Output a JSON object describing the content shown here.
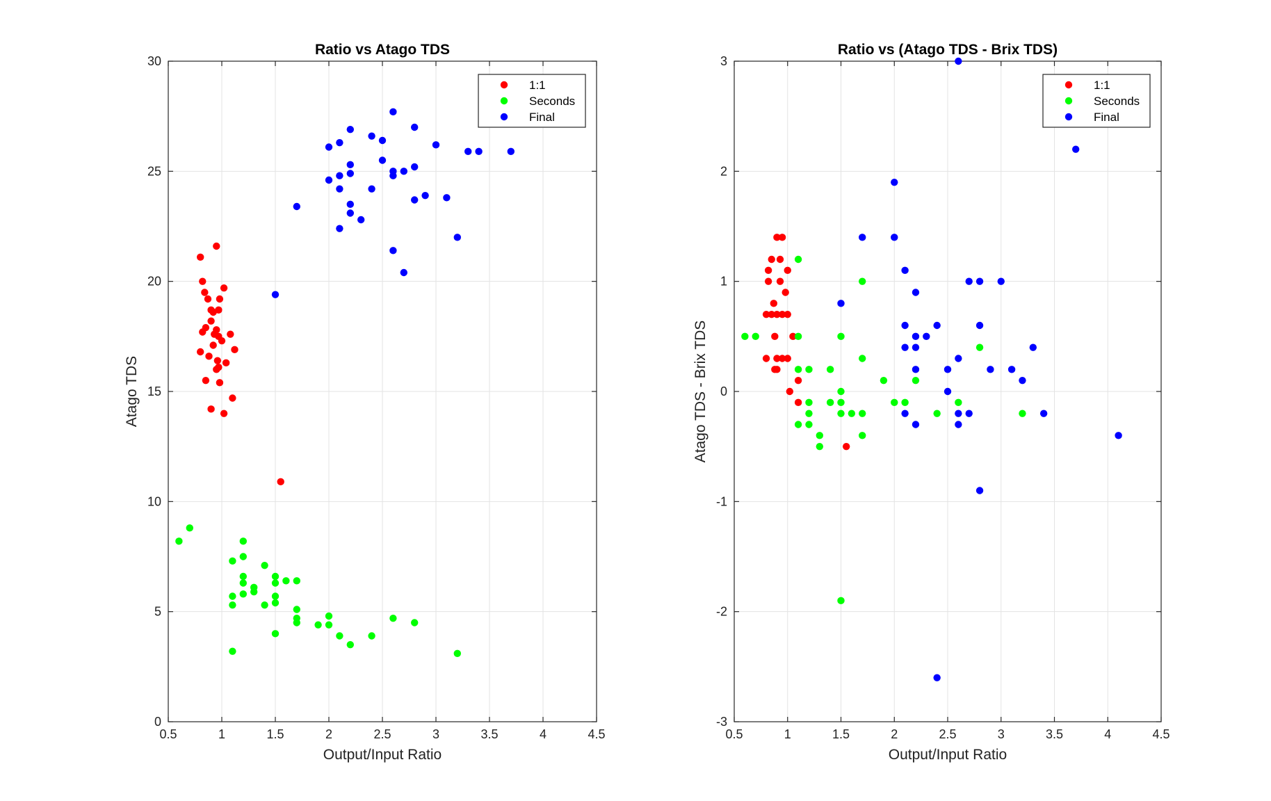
{
  "chart_data": [
    {
      "type": "scatter",
      "title": "Ratio vs Atago TDS",
      "xlabel": "Output/Input Ratio",
      "ylabel": "Atago TDS",
      "xlim": [
        0.5,
        4.5
      ],
      "ylim": [
        0,
        30
      ],
      "xticks": [
        0.5,
        1,
        1.5,
        2,
        2.5,
        3,
        3.5,
        4,
        4.5
      ],
      "xtick_labels": [
        "0.5",
        "1",
        "1.5",
        "2",
        "2.5",
        "3",
        "3.5",
        "4",
        "4.5"
      ],
      "yticks": [
        0,
        5,
        10,
        15,
        20,
        25,
        30
      ],
      "ytick_labels": [
        "0",
        "5",
        "10",
        "15",
        "20",
        "25",
        "30"
      ],
      "grid": true,
      "legend_position": "top-right",
      "series": [
        {
          "name": "1:1",
          "color": "#ff0000",
          "points": [
            [
              0.8,
              21.1
            ],
            [
              0.95,
              21.6
            ],
            [
              0.82,
              20.0
            ],
            [
              1.02,
              19.7
            ],
            [
              0.84,
              19.5
            ],
            [
              0.87,
              19.2
            ],
            [
              0.98,
              19.2
            ],
            [
              0.9,
              18.7
            ],
            [
              0.92,
              18.6
            ],
            [
              0.97,
              18.7
            ],
            [
              0.9,
              18.2
            ],
            [
              0.95,
              17.8
            ],
            [
              0.85,
              17.9
            ],
            [
              0.82,
              17.7
            ],
            [
              0.93,
              17.6
            ],
            [
              0.97,
              17.5
            ],
            [
              1.08,
              17.6
            ],
            [
              1.0,
              17.3
            ],
            [
              0.92,
              17.1
            ],
            [
              0.8,
              16.8
            ],
            [
              1.12,
              16.9
            ],
            [
              0.88,
              16.6
            ],
            [
              0.96,
              16.4
            ],
            [
              1.04,
              16.3
            ],
            [
              0.95,
              16.0
            ],
            [
              0.97,
              16.1
            ],
            [
              0.85,
              15.5
            ],
            [
              0.98,
              15.4
            ],
            [
              1.1,
              14.7
            ],
            [
              0.9,
              14.2
            ],
            [
              1.02,
              14.0
            ],
            [
              1.55,
              10.9
            ]
          ]
        },
        {
          "name": "Seconds",
          "color": "#00ff00",
          "points": [
            [
              0.6,
              8.2
            ],
            [
              0.7,
              8.8
            ],
            [
              1.2,
              8.2
            ],
            [
              1.2,
              7.5
            ],
            [
              1.1,
              7.3
            ],
            [
              1.4,
              7.1
            ],
            [
              1.2,
              6.6
            ],
            [
              1.5,
              6.6
            ],
            [
              1.2,
              6.3
            ],
            [
              1.5,
              6.3
            ],
            [
              1.6,
              6.4
            ],
            [
              1.7,
              6.4
            ],
            [
              1.3,
              6.1
            ],
            [
              1.3,
              5.9
            ],
            [
              1.2,
              5.8
            ],
            [
              1.1,
              5.7
            ],
            [
              1.5,
              5.7
            ],
            [
              1.5,
              5.4
            ],
            [
              1.1,
              5.3
            ],
            [
              1.4,
              5.3
            ],
            [
              1.7,
              5.1
            ],
            [
              2.0,
              4.8
            ],
            [
              1.7,
              4.7
            ],
            [
              2.6,
              4.7
            ],
            [
              1.7,
              4.5
            ],
            [
              2.8,
              4.5
            ],
            [
              1.9,
              4.4
            ],
            [
              2.0,
              4.4
            ],
            [
              1.5,
              4.0
            ],
            [
              2.1,
              3.9
            ],
            [
              2.4,
              3.9
            ],
            [
              2.2,
              3.5
            ],
            [
              1.1,
              3.2
            ],
            [
              3.2,
              3.1
            ]
          ]
        },
        {
          "name": "Final",
          "color": "#0000ff",
          "points": [
            [
              2.6,
              27.7
            ],
            [
              2.8,
              27.0
            ],
            [
              2.2,
              26.9
            ],
            [
              2.4,
              26.6
            ],
            [
              2.5,
              26.4
            ],
            [
              2.1,
              26.3
            ],
            [
              3.0,
              26.2
            ],
            [
              2.0,
              26.1
            ],
            [
              3.3,
              25.9
            ],
            [
              3.4,
              25.9
            ],
            [
              3.7,
              25.9
            ],
            [
              2.5,
              25.5
            ],
            [
              2.2,
              25.3
            ],
            [
              2.8,
              25.2
            ],
            [
              2.6,
              25.0
            ],
            [
              2.7,
              25.0
            ],
            [
              2.2,
              24.9
            ],
            [
              2.1,
              24.8
            ],
            [
              2.6,
              24.8
            ],
            [
              2.0,
              24.6
            ],
            [
              2.1,
              24.2
            ],
            [
              2.4,
              24.2
            ],
            [
              2.9,
              23.9
            ],
            [
              3.1,
              23.8
            ],
            [
              2.8,
              23.7
            ],
            [
              2.2,
              23.5
            ],
            [
              1.7,
              23.4
            ],
            [
              2.2,
              23.1
            ],
            [
              2.3,
              22.8
            ],
            [
              2.1,
              22.4
            ],
            [
              3.2,
              22.0
            ],
            [
              2.6,
              21.4
            ],
            [
              2.7,
              20.4
            ],
            [
              1.5,
              19.4
            ]
          ]
        }
      ]
    },
    {
      "type": "scatter",
      "title": "Ratio vs (Atago TDS - Brix TDS)",
      "xlabel": "Output/Input Ratio",
      "ylabel": "Atago TDS - Brix TDS",
      "xlim": [
        0.5,
        4.5
      ],
      "ylim": [
        -3,
        3
      ],
      "xticks": [
        0.5,
        1,
        1.5,
        2,
        2.5,
        3,
        3.5,
        4,
        4.5
      ],
      "xtick_labels": [
        "0.5",
        "1",
        "1.5",
        "2",
        "2.5",
        "3",
        "3.5",
        "4",
        "4.5"
      ],
      "yticks": [
        -3,
        -2,
        -1,
        0,
        1,
        2,
        3
      ],
      "ytick_labels": [
        "-3",
        "-2",
        "-1",
        "0",
        "1",
        "2",
        "3"
      ],
      "grid": true,
      "legend_position": "top-right",
      "series": [
        {
          "name": "1:1",
          "color": "#ff0000",
          "points": [
            [
              0.9,
              1.4
            ],
            [
              0.95,
              1.4
            ],
            [
              0.85,
              1.2
            ],
            [
              0.93,
              1.2
            ],
            [
              0.82,
              1.1
            ],
            [
              1.0,
              1.1
            ],
            [
              0.82,
              1.0
            ],
            [
              0.93,
              1.0
            ],
            [
              0.87,
              0.8
            ],
            [
              0.98,
              0.9
            ],
            [
              0.8,
              0.7
            ],
            [
              0.85,
              0.7
            ],
            [
              0.9,
              0.7
            ],
            [
              0.95,
              0.7
            ],
            [
              1.0,
              0.7
            ],
            [
              0.88,
              0.5
            ],
            [
              1.05,
              0.5
            ],
            [
              0.9,
              0.3
            ],
            [
              0.95,
              0.3
            ],
            [
              1.0,
              0.3
            ],
            [
              0.8,
              0.3
            ],
            [
              0.88,
              0.2
            ],
            [
              0.9,
              0.2
            ],
            [
              1.1,
              0.1
            ],
            [
              1.02,
              0.0
            ],
            [
              1.1,
              -0.1
            ],
            [
              1.55,
              -0.5
            ]
          ]
        },
        {
          "name": "Seconds",
          "color": "#00ff00",
          "points": [
            [
              1.1,
              1.2
            ],
            [
              1.7,
              1.0
            ],
            [
              0.6,
              0.5
            ],
            [
              0.7,
              0.5
            ],
            [
              1.1,
              0.5
            ],
            [
              1.5,
              0.5
            ],
            [
              2.8,
              0.4
            ],
            [
              1.7,
              0.3
            ],
            [
              1.1,
              0.2
            ],
            [
              1.2,
              0.2
            ],
            [
              1.4,
              0.2
            ],
            [
              1.9,
              0.1
            ],
            [
              2.2,
              0.1
            ],
            [
              1.5,
              0.0
            ],
            [
              1.2,
              -0.1
            ],
            [
              1.4,
              -0.1
            ],
            [
              1.5,
              -0.1
            ],
            [
              2.0,
              -0.1
            ],
            [
              2.1,
              -0.1
            ],
            [
              2.6,
              -0.1
            ],
            [
              1.2,
              -0.2
            ],
            [
              1.5,
              -0.2
            ],
            [
              1.6,
              -0.2
            ],
            [
              1.7,
              -0.2
            ],
            [
              2.4,
              -0.2
            ],
            [
              3.2,
              -0.2
            ],
            [
              1.1,
              -0.3
            ],
            [
              1.2,
              -0.3
            ],
            [
              1.3,
              -0.4
            ],
            [
              1.7,
              -0.4
            ],
            [
              1.3,
              -0.5
            ],
            [
              1.5,
              -1.9
            ]
          ]
        },
        {
          "name": "Final",
          "color": "#0000ff",
          "points": [
            [
              2.6,
              3.0
            ],
            [
              3.7,
              2.2
            ],
            [
              2.0,
              1.9
            ],
            [
              1.7,
              1.4
            ],
            [
              2.0,
              1.4
            ],
            [
              2.1,
              1.1
            ],
            [
              2.7,
              1.0
            ],
            [
              2.8,
              1.0
            ],
            [
              3.0,
              1.0
            ],
            [
              2.2,
              0.9
            ],
            [
              1.5,
              0.8
            ],
            [
              2.1,
              0.6
            ],
            [
              2.4,
              0.6
            ],
            [
              2.8,
              0.6
            ],
            [
              2.2,
              0.5
            ],
            [
              2.3,
              0.5
            ],
            [
              2.1,
              0.4
            ],
            [
              2.2,
              0.4
            ],
            [
              3.3,
              0.4
            ],
            [
              2.6,
              0.3
            ],
            [
              2.2,
              0.2
            ],
            [
              2.5,
              0.2
            ],
            [
              2.9,
              0.2
            ],
            [
              3.1,
              0.2
            ],
            [
              3.2,
              0.1
            ],
            [
              2.5,
              0.0
            ],
            [
              2.1,
              -0.2
            ],
            [
              2.6,
              -0.2
            ],
            [
              2.7,
              -0.2
            ],
            [
              3.4,
              -0.2
            ],
            [
              2.2,
              -0.3
            ],
            [
              2.6,
              -0.3
            ],
            [
              4.1,
              -0.4
            ],
            [
              2.8,
              -0.9
            ],
            [
              2.4,
              -2.6
            ]
          ]
        }
      ]
    }
  ]
}
